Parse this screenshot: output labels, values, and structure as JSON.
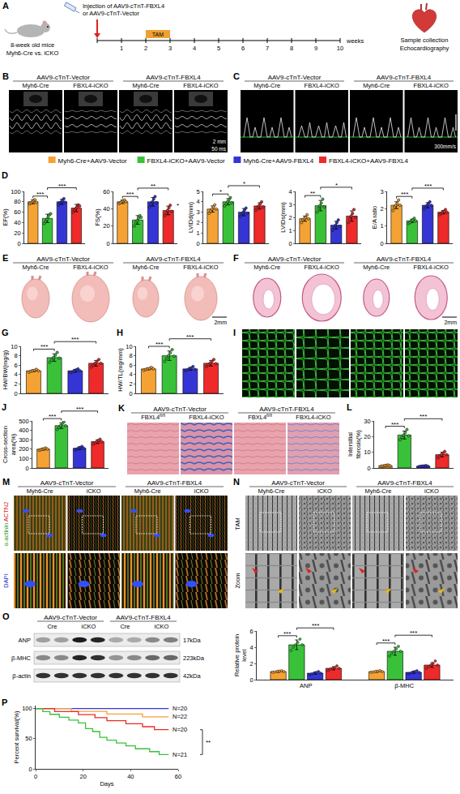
{
  "figure": {
    "legend": [
      {
        "name": "Myh6-Cre+AAV9-Vector",
        "color": "#f5a235"
      },
      {
        "name": "FBXL4-iCKO+AAV9-Vector",
        "color": "#39c239"
      },
      {
        "name": "Myh6-Cre+AAV9-FBXL4",
        "color": "#3535d6"
      },
      {
        "name": "FBXL4-iCKO+AAV9-FBXL4",
        "color": "#ee2a2a"
      }
    ],
    "panels": {
      "A": {
        "letter": "A",
        "injection": [
          "Injection of AAV9-cTnT-FBXL4",
          "or AAV9-cTnT-Vector"
        ],
        "mice": [
          "8-week old mice",
          "Myh6-Cre vs. iCKO"
        ],
        "treatment": "TAM",
        "weeks": [
          1,
          2,
          3,
          4,
          5,
          6,
          7,
          8,
          9,
          10
        ],
        "unit": "weeks",
        "outcome": [
          "Sample collection",
          "Echocardiography"
        ]
      },
      "B": {
        "letter": "B",
        "groups": [
          "AAV9-cTnT-Vector",
          "AAV9-cTnT-FBXL4"
        ],
        "columns": [
          "Myh6-Cre",
          "FBXL4-iCKO",
          "Myh6-Cre",
          "FBXL4-iCKO"
        ],
        "scale": [
          "2 mm",
          "50 ms"
        ]
      },
      "C": {
        "letter": "C",
        "groups": [
          "AAV9-cTnT-Vector",
          "AAV9-cTnT-FBXL4"
        ],
        "columns": [
          "Myh6-Cre",
          "FBXL4-iCKO",
          "Myh6-Cre",
          "FBXL4-iCKO"
        ],
        "scale": [
          "300mm/s"
        ]
      },
      "E": {
        "letter": "E",
        "groups": [
          "AAV9-cTnT-Vector",
          "AAV9-cTnT-FBXL4"
        ],
        "columns": [
          "Myh6-Cre",
          "FBXL4-iCKO",
          "Myh6-Cre",
          "FBXL4-iCKO"
        ],
        "scale": [
          "2mm"
        ]
      },
      "F": {
        "letter": "F",
        "groups": [
          "AAV9-cTnT-Vector",
          "AAV9-cTnT-FBXL4"
        ],
        "columns": [
          "Myh6-Cre",
          "FBXL4-iCKO",
          "Myh6-Cre",
          "FBXL4-iCKO"
        ],
        "scale": [
          "2mm"
        ]
      },
      "I": {
        "letter": "I"
      },
      "K": {
        "letter": "K",
        "groups": [
          "AAV9-cTnT-Vector",
          "AAV9-cTnT-FBXL4"
        ],
        "columns": [
          [
            "FBXL4",
            "fl/fl"
          ],
          "FBXL4-iCKO",
          [
            "FBXL4",
            "fl/fl"
          ],
          "FBXL4-iCKO"
        ]
      },
      "M": {
        "letter": "M",
        "groups": [
          "AAV9-cTnT-Vector",
          "AAV9-cTnT-FBXL4"
        ],
        "columns": [
          "Myh6-Cre",
          "iCKO",
          "Myh6-Cre",
          "iCKO"
        ],
        "stains": [
          "α-actinin",
          "ACTN2",
          "DAPI"
        ]
      },
      "N": {
        "letter": "N",
        "groups": [
          "AAV9-cTnT-Vector",
          "AAV9-cTnT-FBXL4"
        ],
        "columns": [
          "Myh6-Cre",
          "iCKO",
          "Myh6-Cre",
          "iCKO"
        ],
        "rows": [
          "TAM",
          "Zoom"
        ]
      },
      "O": {
        "letter": "O",
        "groups": [
          "AAV9-cTnT-Vector",
          "AAV9-cTnT-FBXL4"
        ],
        "lanes": [
          "Cre",
          "iCKO",
          "Cre",
          "iCKO"
        ],
        "bands": [
          {
            "name": "ANP",
            "size": "17kDa"
          },
          {
            "name": "β-MHC",
            "size": "223kDa"
          },
          {
            "name": "β-actin",
            "size": "42kDa"
          }
        ]
      }
    }
  },
  "chart_data": [
    {
      "type": "bar",
      "panel": "D",
      "y_label": "EF(%)",
      "ylim": [
        0,
        100
      ],
      "yticks": [
        0,
        20,
        40,
        60,
        80,
        100
      ],
      "tick_labels": "y",
      "colors": [
        "#f5a235",
        "#39c239",
        "#3535d6",
        "#ee2a2a"
      ],
      "values": [
        80,
        48,
        80,
        68
      ],
      "errors": [
        4,
        8,
        5,
        7
      ],
      "points": [
        [
          76,
          78,
          80,
          82,
          84,
          79
        ],
        [
          38,
          42,
          46,
          50,
          55,
          57
        ],
        [
          74,
          78,
          80,
          82,
          86,
          79
        ],
        [
          60,
          64,
          67,
          70,
          74,
          72
        ]
      ],
      "annotations": [
        {
          "from": 0,
          "to": 1,
          "text": "***"
        },
        {
          "from": 1,
          "to": 3,
          "text": "***"
        }
      ]
    },
    {
      "type": "bar",
      "y_label": "FS(%)",
      "ylim": [
        0,
        60
      ],
      "yticks": [
        0,
        20,
        40,
        60
      ],
      "tick_labels": "y",
      "colors": [
        "#f5a235",
        "#39c239",
        "#3535d6",
        "#ee2a2a"
      ],
      "values": [
        48,
        27,
        48,
        38
      ],
      "errors": [
        2,
        5,
        5,
        5
      ],
      "points": [
        [
          46,
          47,
          48,
          49,
          50,
          48
        ],
        [
          20,
          24,
          26,
          29,
          32,
          30
        ],
        [
          42,
          45,
          48,
          51,
          54,
          47
        ],
        [
          32,
          35,
          38,
          41,
          44,
          37
        ]
      ],
      "annotations": [
        {
          "from": 0,
          "to": 1,
          "text": "***"
        },
        {
          "from": 1,
          "to": 3,
          "text": "**"
        },
        {
          "from": 3,
          "to": 3,
          "text": "*"
        }
      ]
    },
    {
      "type": "bar",
      "y_label": "LVIDd(mm)",
      "ylim": [
        0,
        5
      ],
      "yticks": [
        0,
        1,
        2,
        3,
        4,
        5
      ],
      "tick_labels": "y",
      "colors": [
        "#f5a235",
        "#39c239",
        "#3535d6",
        "#ee2a2a"
      ],
      "values": [
        3.3,
        4.0,
        3.0,
        3.6
      ],
      "errors": [
        0.3,
        0.3,
        0.35,
        0.3
      ],
      "points": [
        [
          2.9,
          3.1,
          3.3,
          3.5,
          3.7,
          3.3
        ],
        [
          3.6,
          3.8,
          4.0,
          4.2,
          4.4,
          3.9
        ],
        [
          2.6,
          2.8,
          3.0,
          3.2,
          3.4,
          2.9
        ],
        [
          3.2,
          3.4,
          3.6,
          3.8,
          4.0,
          3.5
        ]
      ],
      "annotations": [
        {
          "from": 0,
          "to": 1,
          "text": "*"
        },
        {
          "from": 1,
          "to": 3,
          "text": "*"
        }
      ]
    },
    {
      "type": "bar",
      "y_label": "LVIDs(mm)",
      "ylim": [
        0,
        4
      ],
      "yticks": [
        0,
        1,
        2,
        3,
        4
      ],
      "tick_labels": "y",
      "colors": [
        "#f5a235",
        "#39c239",
        "#3535d6",
        "#ee2a2a"
      ],
      "values": [
        1.9,
        2.9,
        1.4,
        2.1
      ],
      "errors": [
        0.2,
        0.4,
        0.3,
        0.4
      ],
      "points": [
        [
          1.6,
          1.8,
          1.9,
          2.0,
          2.2,
          1.9
        ],
        [
          2.4,
          2.7,
          2.9,
          3.1,
          3.4,
          2.8
        ],
        [
          1.0,
          1.2,
          1.4,
          1.6,
          1.8,
          1.3
        ],
        [
          1.6,
          1.9,
          2.1,
          2.3,
          2.6,
          2.0
        ]
      ],
      "annotations": [
        {
          "from": 0,
          "to": 1,
          "text": "**"
        },
        {
          "from": 1,
          "to": 3,
          "text": "*"
        }
      ]
    },
    {
      "type": "bar",
      "y_label": "E/A ratio",
      "ylim": [
        0,
        3
      ],
      "yticks": [
        0,
        1,
        2,
        3
      ],
      "tick_labels": "y",
      "colors": [
        "#f5a235",
        "#39c239",
        "#3535d6",
        "#ee2a2a"
      ],
      "values": [
        2.2,
        1.3,
        2.2,
        1.8
      ],
      "errors": [
        0.2,
        0.1,
        0.15,
        0.1
      ],
      "points": [
        [
          1.9,
          2.1,
          2.2,
          2.3,
          2.5,
          2.2
        ],
        [
          1.15,
          1.2,
          1.3,
          1.35,
          1.45,
          1.3
        ],
        [
          2.0,
          2.1,
          2.2,
          2.3,
          2.4,
          2.2
        ],
        [
          1.65,
          1.75,
          1.8,
          1.85,
          1.95,
          1.8
        ]
      ],
      "annotations": [
        {
          "from": 0,
          "to": 1,
          "text": "***"
        },
        {
          "from": 1,
          "to": 3,
          "text": "***"
        }
      ]
    },
    {
      "type": "bar",
      "panel": "G",
      "y_label": "HW/BW(mg/g)",
      "ylim": [
        0,
        10
      ],
      "yticks": [
        0,
        2,
        4,
        6,
        8,
        10
      ],
      "tick_labels": "y",
      "colors": [
        "#f5a235",
        "#39c239",
        "#3535d6",
        "#ee2a2a"
      ],
      "values": [
        4.8,
        7.6,
        4.8,
        6.4
      ],
      "errors": [
        0.2,
        0.8,
        0.3,
        0.6
      ],
      "points": [
        [
          4.5,
          4.7,
          4.8,
          4.9,
          5.1,
          4.8
        ],
        [
          6.6,
          7.1,
          7.6,
          8.1,
          8.7,
          7.5
        ],
        [
          4.4,
          4.6,
          4.8,
          5.0,
          5.2,
          4.8
        ],
        [
          5.6,
          6.0,
          6.4,
          6.8,
          7.2,
          6.4
        ]
      ],
      "annotations": [
        {
          "from": 0,
          "to": 1,
          "text": "***"
        },
        {
          "from": 1,
          "to": 3,
          "text": "***"
        }
      ]
    },
    {
      "type": "bar",
      "panel": "H",
      "y_label": "HW/TL(mg/mm)",
      "ylim": [
        0,
        10
      ],
      "yticks": [
        0,
        2,
        4,
        6,
        8,
        10
      ],
      "tick_labels": "y",
      "colors": [
        "#f5a235",
        "#39c239",
        "#3535d6",
        "#ee2a2a"
      ],
      "values": [
        5.2,
        8.0,
        5.2,
        6.4
      ],
      "errors": [
        0.2,
        1.0,
        0.3,
        0.6
      ],
      "points": [
        [
          4.9,
          5.1,
          5.2,
          5.3,
          5.5,
          5.2
        ],
        [
          6.8,
          7.4,
          8.0,
          8.6,
          9.3,
          7.9
        ],
        [
          4.8,
          5.0,
          5.2,
          5.4,
          5.7,
          5.1
        ],
        [
          5.7,
          6.1,
          6.4,
          6.8,
          7.2,
          6.3
        ]
      ],
      "annotations": [
        {
          "from": 0,
          "to": 1,
          "text": "***"
        },
        {
          "from": 1,
          "to": 3,
          "text": "***"
        }
      ]
    },
    {
      "type": "bar",
      "panel": "J",
      "y_label": "Cross-section area(%)",
      "ylim": [
        0,
        500
      ],
      "yticks": [
        0,
        100,
        200,
        300,
        400,
        500
      ],
      "tick_labels": "y",
      "colors": [
        "#f5a235",
        "#39c239",
        "#3535d6",
        "#ee2a2a"
      ],
      "values": [
        200,
        450,
        210,
        280
      ],
      "errors": [
        10,
        30,
        15,
        20
      ],
      "points": [
        [
          188,
          195,
          200,
          205,
          212,
          200
        ],
        [
          410,
          430,
          450,
          470,
          490,
          450
        ],
        [
          192,
          202,
          210,
          218,
          228,
          210
        ],
        [
          255,
          268,
          280,
          292,
          305,
          280
        ]
      ],
      "annotations": [
        {
          "from": 0,
          "to": 1,
          "text": "***"
        },
        {
          "from": 1,
          "to": 3,
          "text": "***"
        }
      ]
    },
    {
      "type": "bar",
      "panel": "L",
      "y_label": "Intersitial fibrosis(%)",
      "ylim": [
        0,
        30
      ],
      "yticks": [
        0,
        10,
        20,
        30
      ],
      "tick_labels": "y",
      "colors": [
        "#f5a235",
        "#39c239",
        "#3535d6",
        "#ee2a2a"
      ],
      "values": [
        1.5,
        21,
        1.2,
        8.5
      ],
      "errors": [
        0.3,
        2.5,
        0.3,
        1.5
      ],
      "points": [
        [
          1.1,
          1.3,
          1.5,
          1.7,
          1.9,
          1.5
        ],
        [
          18,
          19.5,
          21,
          22.5,
          24.5,
          20.5
        ],
        [
          0.9,
          1.1,
          1.2,
          1.3,
          1.5,
          1.2
        ],
        [
          6.5,
          7.5,
          8.5,
          9.5,
          10.5,
          8.5
        ]
      ],
      "annotations": [
        {
          "from": 0,
          "to": 1,
          "text": "***"
        },
        {
          "from": 1,
          "to": 3,
          "text": "***"
        }
      ]
    },
    {
      "type": "bar",
      "y_label": "Relative protein level",
      "ylim": [
        0,
        6
      ],
      "yticks": [
        0,
        2,
        4,
        6
      ],
      "categories": [
        "ANP",
        "β-MHC"
      ],
      "series": [
        {
          "color": "#f5a235",
          "values": [
            1.0,
            1.0
          ],
          "errors": [
            0.1,
            0.1
          ],
          "points": [
            [
              0.9,
              0.95,
              1.0,
              1.05,
              1.1,
              1.0
            ],
            [
              0.9,
              0.95,
              1.0,
              1.05,
              1.1,
              1.0
            ]
          ]
        },
        {
          "color": "#39c239",
          "values": [
            4.3,
            3.5
          ],
          "errors": [
            0.6,
            0.5
          ],
          "points": [
            [
              3.6,
              4.0,
              4.3,
              4.6,
              5.0,
              4.3
            ],
            [
              2.9,
              3.2,
              3.5,
              3.8,
              4.1,
              3.5
            ]
          ]
        },
        {
          "color": "#3535d6",
          "values": [
            0.8,
            0.9
          ],
          "errors": [
            0.15,
            0.15
          ],
          "points": [
            [
              0.6,
              0.7,
              0.8,
              0.9,
              1.0,
              0.8
            ],
            [
              0.7,
              0.8,
              0.9,
              1.0,
              1.1,
              0.9
            ]
          ]
        },
        {
          "color": "#ee2a2a",
          "values": [
            1.4,
            1.8
          ],
          "errors": [
            0.2,
            0.3
          ],
          "points": [
            [
              1.1,
              1.3,
              1.4,
              1.5,
              1.7,
              1.4
            ],
            [
              1.4,
              1.6,
              1.8,
              2.0,
              2.3,
              1.8
            ]
          ]
        }
      ],
      "annotations": [
        {
          "category": 0,
          "from": 0,
          "to": 1,
          "text": "***"
        },
        {
          "category": 0,
          "from": 1,
          "to": 3,
          "text": "***"
        },
        {
          "category": 1,
          "from": 0,
          "to": 1,
          "text": "***"
        },
        {
          "category": 1,
          "from": 1,
          "to": 3,
          "text": "***"
        }
      ]
    },
    {
      "type": "line",
      "panel": "P",
      "line_style": "step",
      "x_label": "Days",
      "y_label": "Percent survival(%)",
      "xlim": [
        0,
        60
      ],
      "xticks": [
        0,
        20,
        40,
        60
      ],
      "ylim": [
        0,
        105
      ],
      "yticks": [
        0,
        50,
        100
      ],
      "series": [
        {
          "name": "N=20",
          "color": "#3535d6",
          "x": [
            0,
            56
          ],
          "values": [
            100,
            100
          ]
        },
        {
          "name": "N=22",
          "color": "#f5a235",
          "x": [
            0,
            15,
            30,
            45,
            56
          ],
          "values": [
            100,
            95.5,
            90.9,
            86.4,
            86.4
          ]
        },
        {
          "name": "N=20",
          "color": "#ee2a2a",
          "x": [
            0,
            8,
            18,
            25,
            30,
            38,
            45,
            50,
            56
          ],
          "values": [
            100,
            95,
            90,
            85,
            80,
            75,
            70,
            65,
            65
          ]
        },
        {
          "name": "N=21",
          "color": "#39c239",
          "x": [
            0,
            3,
            6,
            10,
            14,
            18,
            21,
            24,
            27,
            30,
            34,
            38,
            42,
            48,
            52,
            56
          ],
          "values": [
            100,
            95.2,
            90.5,
            85.7,
            81,
            76.2,
            66.7,
            61.9,
            52.4,
            47.6,
            42.9,
            38.1,
            33.3,
            28.6,
            23.8,
            23.8
          ]
        }
      ],
      "annotations": [
        {
          "series": [
            2,
            3
          ],
          "text": "**"
        }
      ]
    }
  ]
}
